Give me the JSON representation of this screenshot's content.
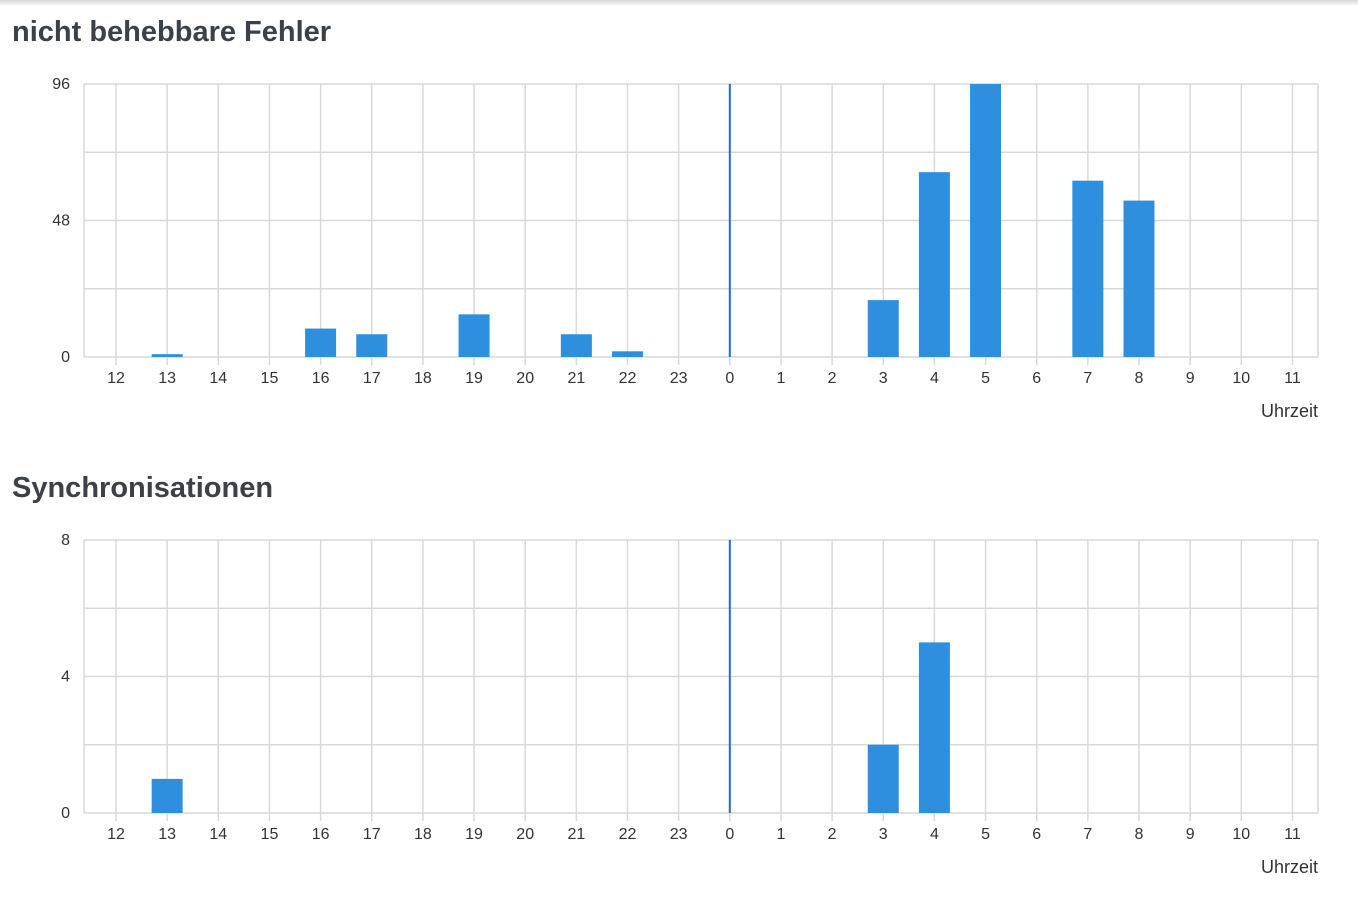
{
  "accent_color": "#2d8fdd",
  "marker_color": "#1a73c4",
  "grid_color": "#d9d9d9",
  "chart_data": [
    {
      "type": "bar",
      "title": "nicht behebbare Fehler",
      "xlabel": "Uhrzeit",
      "ylabel": "",
      "categories": [
        "12",
        "13",
        "14",
        "15",
        "16",
        "17",
        "18",
        "19",
        "20",
        "21",
        "22",
        "23",
        "0",
        "1",
        "2",
        "3",
        "4",
        "5",
        "6",
        "7",
        "8",
        "9",
        "10",
        "11"
      ],
      "values": [
        0,
        1,
        0,
        0,
        10,
        8,
        0,
        15,
        0,
        8,
        2,
        0,
        0,
        0,
        0,
        20,
        65,
        96,
        0,
        62,
        55,
        0,
        0,
        0
      ],
      "yticks": [
        "0",
        "48",
        "96"
      ],
      "ylim": [
        0,
        96
      ],
      "grid": true,
      "marker_category": "0"
    },
    {
      "type": "bar",
      "title": "Synchronisationen",
      "xlabel": "Uhrzeit",
      "ylabel": "",
      "categories": [
        "12",
        "13",
        "14",
        "15",
        "16",
        "17",
        "18",
        "19",
        "20",
        "21",
        "22",
        "23",
        "0",
        "1",
        "2",
        "3",
        "4",
        "5",
        "6",
        "7",
        "8",
        "9",
        "10",
        "11"
      ],
      "values": [
        0,
        1,
        0,
        0,
        0,
        0,
        0,
        0,
        0,
        0,
        0,
        0,
        0,
        0,
        0,
        2,
        5,
        0,
        0,
        0,
        0,
        0,
        0,
        0
      ],
      "yticks": [
        "0",
        "4",
        "8"
      ],
      "ylim": [
        0,
        8
      ],
      "grid": true,
      "marker_category": "0"
    }
  ]
}
